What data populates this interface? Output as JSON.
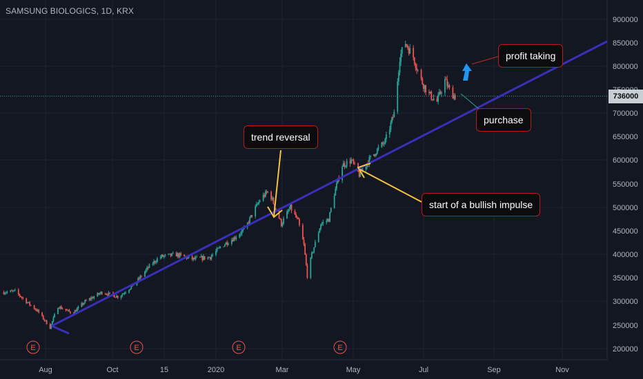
{
  "header": {
    "title": "SAMSUNG BIOLOGICS, 1D, KRX"
  },
  "price_label": "736000",
  "annotations": {
    "trend_reversal": "trend reversal",
    "bullish_impulse": "start of a bullish impulse",
    "profit_taking": "profit taking",
    "purchase": "purchase"
  },
  "colors": {
    "background": "#131722",
    "up": "#26a69a",
    "down": "#ef5350",
    "trendline": "#3a2fb8",
    "arrow_yellow": "#f5c242",
    "arrow_blue": "#2196f3",
    "current_price_line": "#26a69a"
  },
  "chart_data": {
    "type": "candlestick",
    "symbol": "SAMSUNG BIOLOGICS",
    "interval": "1D",
    "exchange": "KRX",
    "y_ticks": [
      "900000",
      "850000",
      "800000",
      "750000",
      "700000",
      "650000",
      "600000",
      "550000",
      "500000",
      "450000",
      "400000",
      "350000",
      "300000",
      "250000",
      "200000"
    ],
    "ylim": [
      180000,
      930000
    ],
    "x_ticks": [
      "Aug",
      "Oct",
      "15",
      "2020",
      "Mar",
      "May",
      "Jul",
      "Sep",
      "Nov"
    ],
    "current_price": 736000,
    "earnings_markers": [
      "E",
      "E",
      "E",
      "E"
    ],
    "price_path": [
      [
        "2019-06-25",
        320000
      ],
      [
        "2019-07-05",
        322000
      ],
      [
        "2019-07-15",
        300000
      ],
      [
        "2019-07-25",
        280000
      ],
      [
        "2019-08-05",
        245000
      ],
      [
        "2019-08-12",
        290000
      ],
      [
        "2019-08-25",
        275000
      ],
      [
        "2019-09-05",
        300000
      ],
      [
        "2019-09-20",
        320000
      ],
      [
        "2019-10-05",
        310000
      ],
      [
        "2019-10-20",
        340000
      ],
      [
        "2019-11-01",
        375000
      ],
      [
        "2019-11-10",
        395000
      ],
      [
        "2019-11-25",
        400000
      ],
      [
        "2019-12-10",
        390000
      ],
      [
        "2019-12-25",
        395000
      ],
      [
        "2020-01-05",
        420000
      ],
      [
        "2020-01-15",
        435000
      ],
      [
        "2020-01-25",
        455000
      ],
      [
        "2020-02-01",
        490000
      ],
      [
        "2020-02-08",
        520000
      ],
      [
        "2020-02-15",
        535000
      ],
      [
        "2020-02-22",
        490000
      ],
      [
        "2020-02-26",
        465000
      ],
      [
        "2020-03-05",
        500000
      ],
      [
        "2020-03-12",
        470000
      ],
      [
        "2020-03-17",
        420000
      ],
      [
        "2020-03-20",
        355000
      ],
      [
        "2020-03-24",
        400000
      ],
      [
        "2020-04-01",
        465000
      ],
      [
        "2020-04-08",
        475000
      ],
      [
        "2020-04-13",
        530000
      ],
      [
        "2020-04-20",
        590000
      ],
      [
        "2020-04-28",
        600000
      ],
      [
        "2020-05-05",
        570000
      ],
      [
        "2020-05-12",
        595000
      ],
      [
        "2020-05-20",
        620000
      ],
      [
        "2020-05-28",
        640000
      ],
      [
        "2020-06-05",
        700000
      ],
      [
        "2020-06-10",
        820000
      ],
      [
        "2020-06-15",
        850000
      ],
      [
        "2020-06-22",
        820000
      ],
      [
        "2020-06-29",
        770000
      ],
      [
        "2020-07-06",
        740000
      ],
      [
        "2020-07-13",
        725000
      ],
      [
        "2020-07-20",
        770000
      ],
      [
        "2020-07-25",
        745000
      ],
      [
        "2020-07-29",
        736000
      ]
    ],
    "trendline": {
      "start": [
        "2019-08-05",
        250000
      ],
      "end": [
        "2020-11-20",
        850000
      ]
    }
  }
}
